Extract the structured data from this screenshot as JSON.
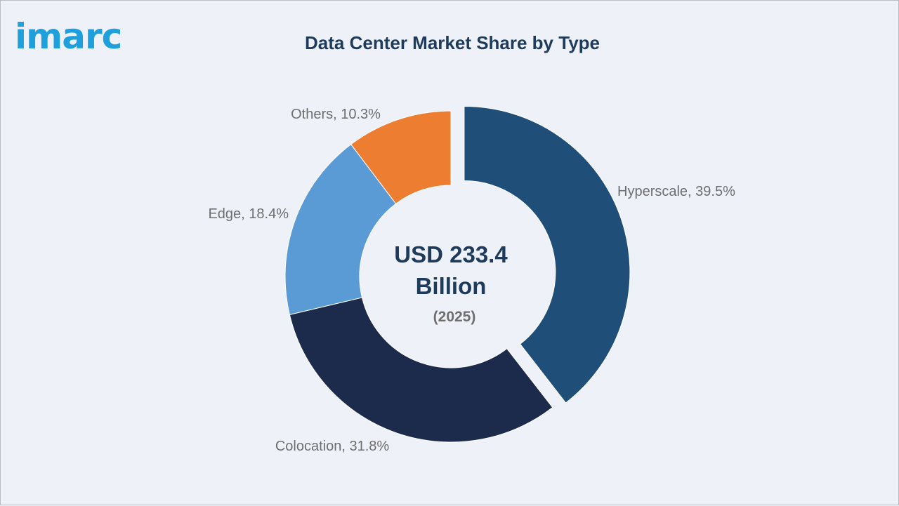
{
  "brand": {
    "logo_text": "imarc",
    "logo_color": "#1ea0dc"
  },
  "chart_data": {
    "type": "pie",
    "title": "Data Center Market Share by Type",
    "donut": true,
    "center_text": {
      "line1": "USD 233.4",
      "line2": "Billion",
      "line3": "(2025)"
    },
    "slices": [
      {
        "label": "Hyperscale, 39.5%",
        "name": "Hyperscale",
        "value": 39.5,
        "color": "#1f4e79",
        "exploded": true
      },
      {
        "label": "Colocation, 31.8%",
        "name": "Colocation",
        "value": 31.8,
        "color": "#1c2a4b",
        "exploded": false
      },
      {
        "label": "Edge, 18.4%",
        "name": "Edge",
        "value": 18.4,
        "color": "#5b9bd5",
        "exploded": false
      },
      {
        "label": "Others, 10.3%",
        "name": "Others",
        "value": 10.3,
        "color": "#ed7d31",
        "exploded": false
      }
    ]
  }
}
